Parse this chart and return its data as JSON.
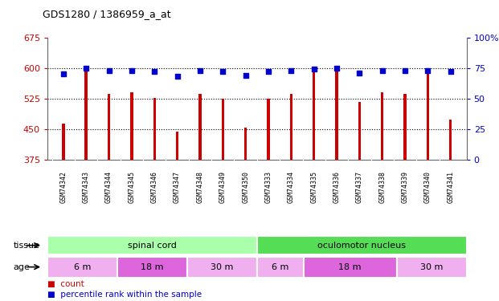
{
  "title": "GDS1280 / 1386959_a_at",
  "samples": [
    "GSM74342",
    "GSM74343",
    "GSM74344",
    "GSM74345",
    "GSM74346",
    "GSM74347",
    "GSM74348",
    "GSM74349",
    "GSM74350",
    "GSM74333",
    "GSM74334",
    "GSM74335",
    "GSM74336",
    "GSM74337",
    "GSM74338",
    "GSM74339",
    "GSM74340",
    "GSM74341"
  ],
  "counts": [
    463,
    597,
    537,
    540,
    527,
    444,
    537,
    524,
    454,
    524,
    537,
    591,
    604,
    517,
    540,
    537,
    590,
    473
  ],
  "percentiles": [
    70,
    75,
    73,
    73,
    72,
    68,
    73,
    72,
    69,
    72,
    73,
    74,
    75,
    71,
    73,
    73,
    73,
    72
  ],
  "ylim_left": [
    375,
    675
  ],
  "ylim_right": [
    0,
    100
  ],
  "yticks_left": [
    375,
    450,
    525,
    600,
    675
  ],
  "yticks_right": [
    0,
    25,
    50,
    75,
    100
  ],
  "bar_color": "#cc0000",
  "dot_color": "#0000cc",
  "grid_color": "#000000",
  "axis_color_left": "#cc0000",
  "axis_color_right": "#0000cc",
  "tissue_labels": [
    {
      "label": "spinal cord",
      "start": 0,
      "end": 9,
      "color": "#aaffaa"
    },
    {
      "label": "oculomotor nucleus",
      "start": 9,
      "end": 18,
      "color": "#55dd55"
    }
  ],
  "age_groups": [
    {
      "label": "6 m",
      "start": 0,
      "end": 3,
      "color": "#f0b0f0"
    },
    {
      "label": "18 m",
      "start": 3,
      "end": 6,
      "color": "#dd66dd"
    },
    {
      "label": "30 m",
      "start": 6,
      "end": 9,
      "color": "#f0b0f0"
    },
    {
      "label": "6 m",
      "start": 9,
      "end": 11,
      "color": "#f0b0f0"
    },
    {
      "label": "18 m",
      "start": 11,
      "end": 15,
      "color": "#dd66dd"
    },
    {
      "label": "30 m",
      "start": 15,
      "end": 18,
      "color": "#f0b0f0"
    }
  ],
  "legend_count_label": "count",
  "legend_pct_label": "percentile rank within the sample",
  "tissue_row_label": "tissue",
  "age_row_label": "age",
  "bar_width": 0.12,
  "background_color": "#ffffff",
  "plot_bg_color": "#ffffff",
  "xlabel_bg_color": "#cccccc",
  "ytick_labels_right": [
    "0",
    "25",
    "50",
    "75",
    "100%"
  ]
}
